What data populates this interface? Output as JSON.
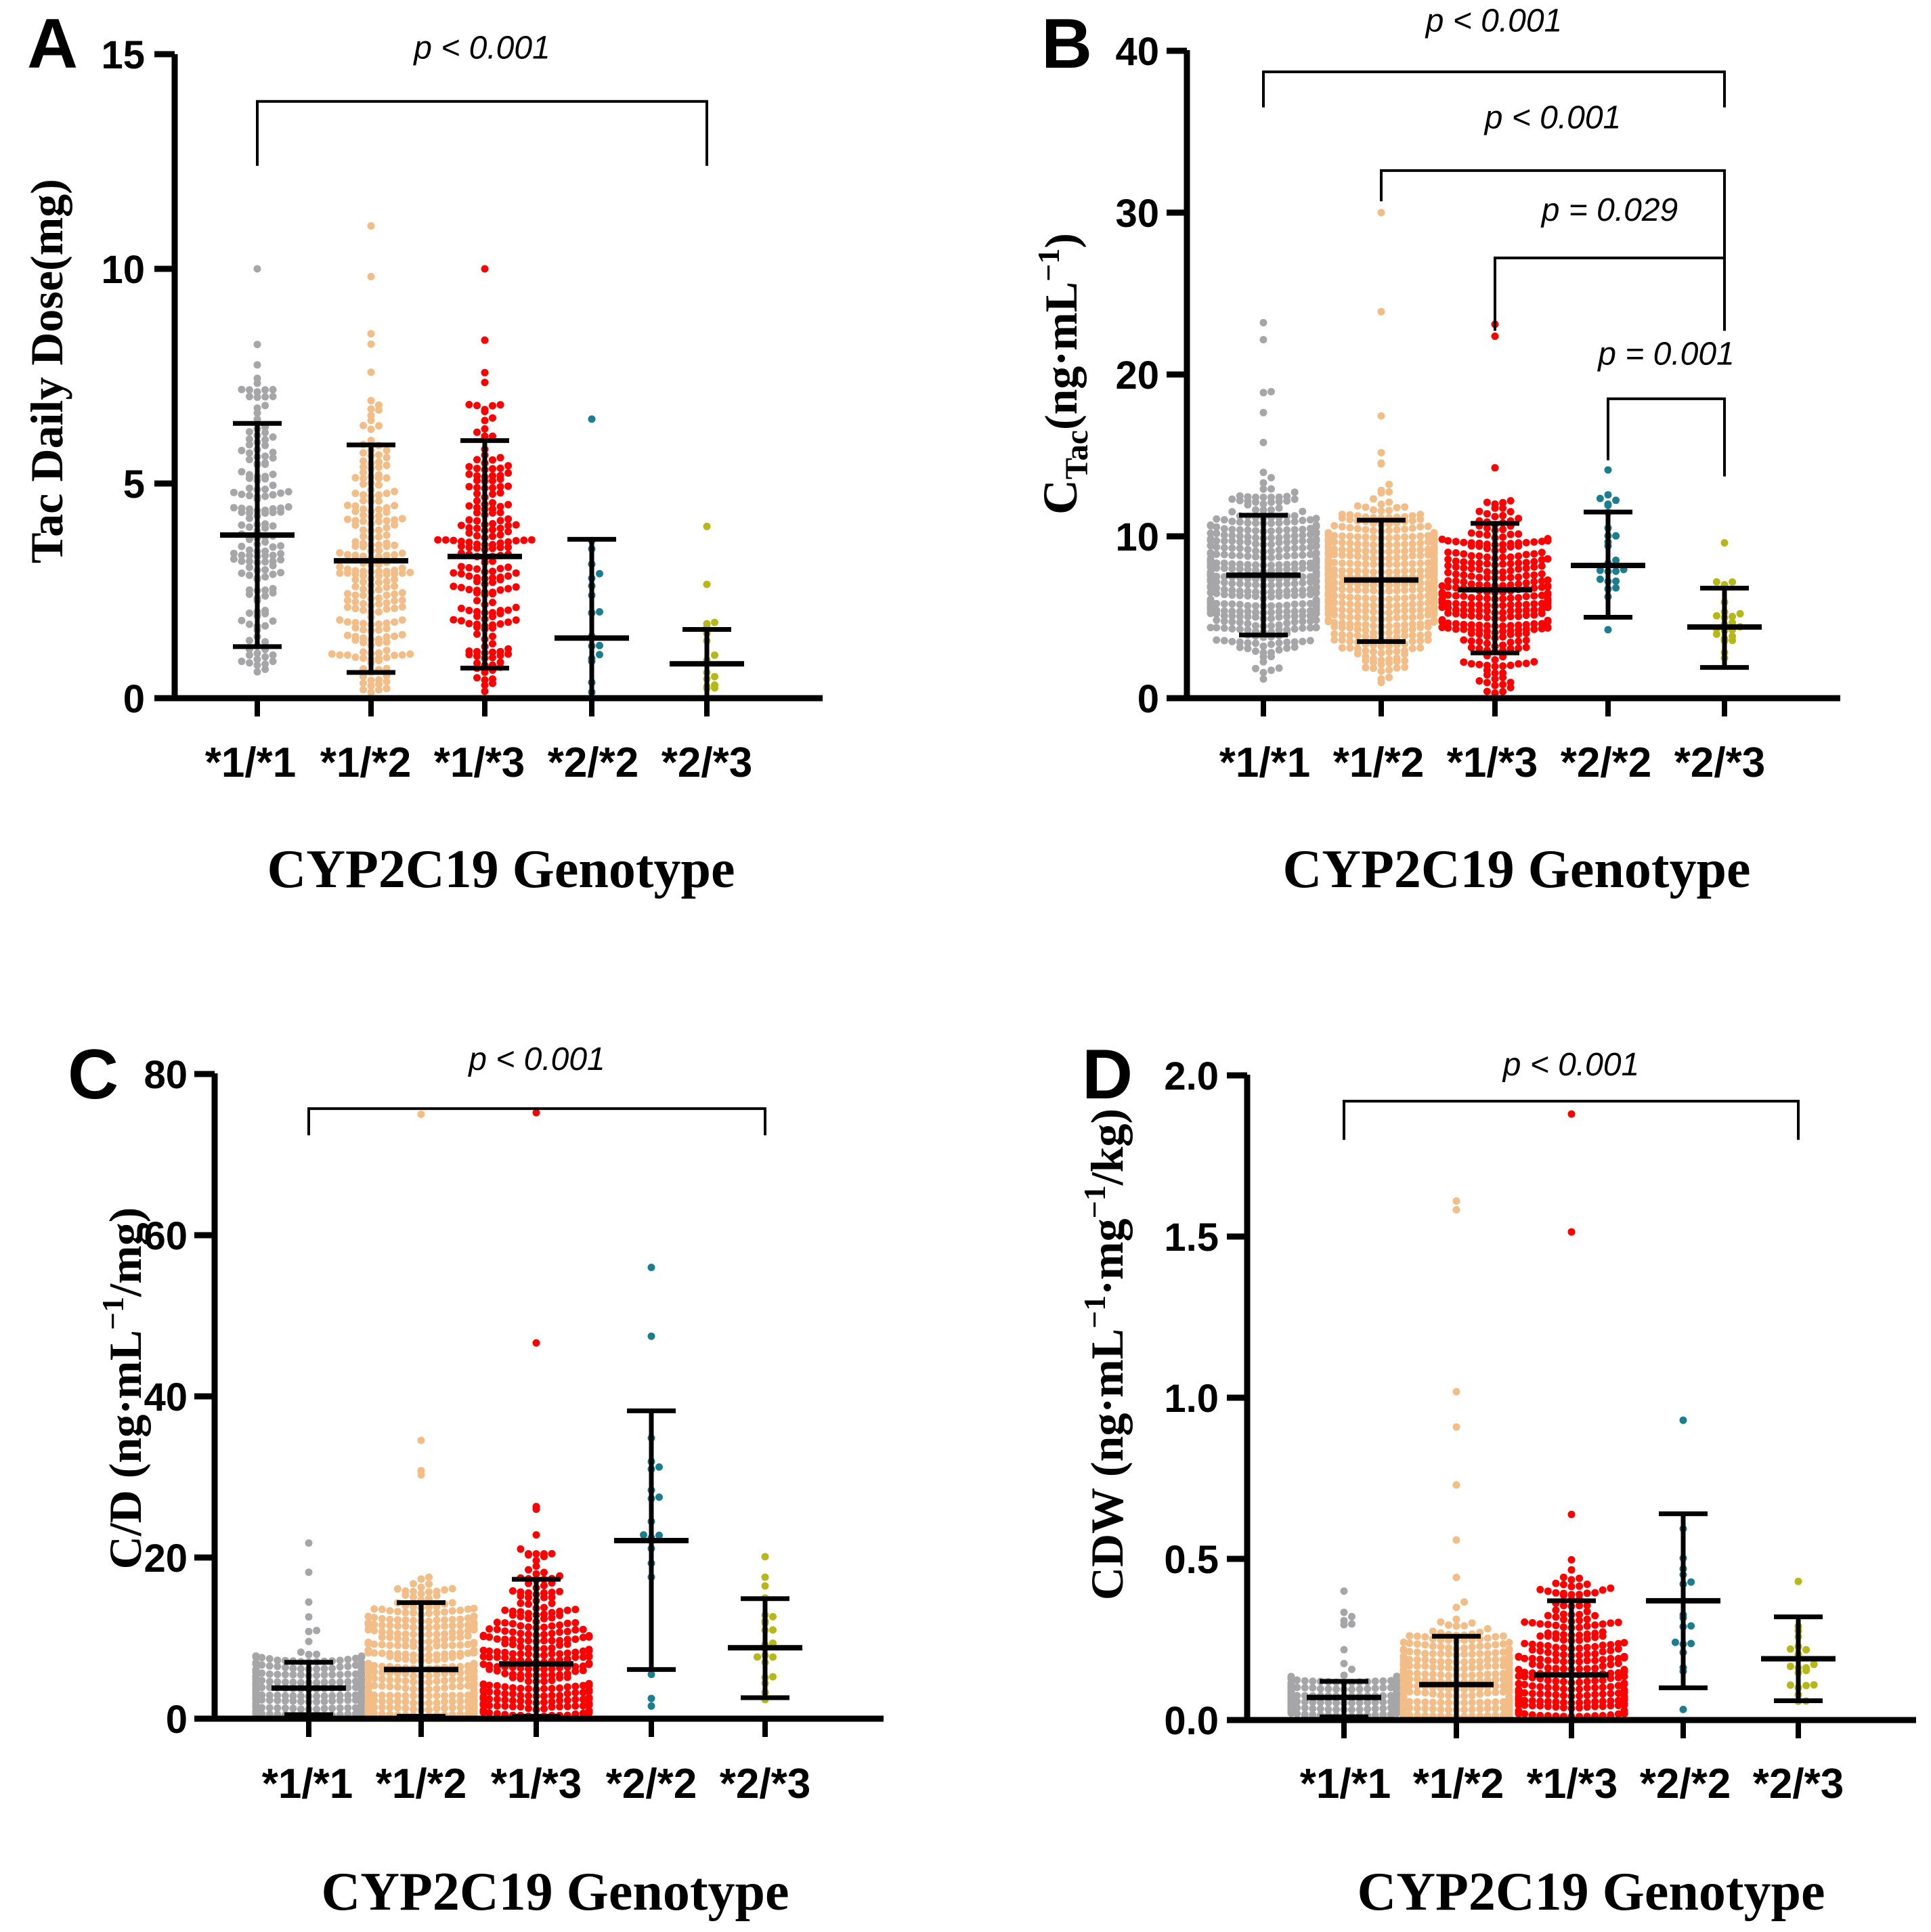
{
  "figure": {
    "genotypes": [
      "*1/*1",
      "*1/*2",
      "*1/*3",
      "*2/*2",
      "*2/*3"
    ],
    "colors": [
      "#a6a6a8",
      "#f2bd86",
      "#ff0000",
      "#1c7d91",
      "#b6b81a"
    ]
  },
  "chart_data": [
    {
      "panel": "A",
      "type": "scatter",
      "xlabel": "CYP2C19 Genotype",
      "ylabel": "Tac Daily Dose(mg)",
      "ylim": [
        0,
        15
      ],
      "yticks": [
        0,
        5,
        10,
        15
      ],
      "ytick_labels": [
        "0",
        "5",
        "10",
        "15"
      ],
      "categories": [
        "*1/*1",
        "*1/*2",
        "*1/*3",
        "*2/*2",
        "*2/*3"
      ],
      "groups": [
        {
          "name": "*1/*1",
          "mean": 3.8,
          "sd_low": 1.2,
          "sd_high": 6.4,
          "max": 10,
          "min": 0.5,
          "n": 160
        },
        {
          "name": "*1/*2",
          "mean": 3.2,
          "sd_low": 0.6,
          "sd_high": 5.9,
          "max": 11,
          "min": 0.1,
          "n": 220
        },
        {
          "name": "*1/*3",
          "mean": 3.3,
          "sd_low": 0.7,
          "sd_high": 6.0,
          "max": 10,
          "min": 0.1,
          "n": 200
        },
        {
          "name": "*2/*2",
          "mean": 1.4,
          "sd_low": 0.0,
          "sd_high": 3.7,
          "max": 6.5,
          "min": 0.1,
          "n": 18
        },
        {
          "name": "*2/*3",
          "mean": 0.8,
          "sd_low": 0.0,
          "sd_high": 1.6,
          "max": 4,
          "min": 0.2,
          "n": 16
        }
      ],
      "comparisons": [
        {
          "from": 0,
          "to": 4,
          "label": "p < 0.001",
          "y": 13.9,
          "drop_from": 12.4,
          "drop_to": 12.4,
          "text_y": 14.9
        }
      ]
    },
    {
      "panel": "B",
      "type": "scatter",
      "xlabel": "CYP2C19 Genotype",
      "ylabel_main": "C",
      "ylabel_sub": "Tac",
      "ylabel_rest": "(ng·mL",
      "ylabel_sup": "−1",
      "ylabel_end": ")",
      "ylim": [
        0,
        40
      ],
      "yticks": [
        0,
        10,
        20,
        30,
        40
      ],
      "ytick_labels": [
        "0",
        "10",
        "20",
        "30",
        "40"
      ],
      "categories": [
        "*1/*1",
        "*1/*2",
        "*1/*3",
        "*2/*2",
        "*2/*3"
      ],
      "groups": [
        {
          "name": "*1/*1",
          "mean": 7.6,
          "sd_low": 3.9,
          "sd_high": 11.3,
          "max": 23.2,
          "min": 0.8,
          "n": 420
        },
        {
          "name": "*1/*2",
          "mean": 7.3,
          "sd_low": 3.5,
          "sd_high": 11.0,
          "max": 30,
          "min": 0.3,
          "n": 500
        },
        {
          "name": "*1/*3",
          "mean": 6.7,
          "sd_low": 2.8,
          "sd_high": 10.8,
          "max": 23.1,
          "min": 0.3,
          "n": 300
        },
        {
          "name": "*2/*2",
          "mean": 8.2,
          "sd_low": 5.0,
          "sd_high": 11.5,
          "max": 14.1,
          "min": 2.9,
          "n": 24
        },
        {
          "name": "*2/*3",
          "mean": 4.4,
          "sd_low": 1.9,
          "sd_high": 6.8,
          "max": 9.6,
          "min": 1.3,
          "n": 22
        }
      ],
      "comparisons": [
        {
          "from": 0,
          "to": 4,
          "label": "p < 0.001",
          "y": 38.7,
          "drop_from": 36.5,
          "drop_to": 36.5,
          "text_y": 41.2
        },
        {
          "from": 1,
          "to": 4,
          "label": "p < 0.001",
          "y": 32.6,
          "drop_from": 30.7,
          "drop_to": 25.0,
          "text_y": 35.2
        },
        {
          "from": 2,
          "to": 4,
          "label": "p = 0.029",
          "y": 27.2,
          "drop_from": 22.7,
          "drop_to": 22.7,
          "text_y": 29.5
        },
        {
          "from": 3,
          "to": 4,
          "label": "p = 0.001",
          "y": 18.5,
          "drop_from": 14.7,
          "drop_to": 13.7,
          "text_y": 20.6
        }
      ]
    },
    {
      "panel": "C",
      "type": "scatter",
      "xlabel": "CYP2C19 Genotype",
      "ylabel_main": "C/D (ng·mL",
      "ylabel_sup": "−1",
      "ylabel_end": "/mg)",
      "ylim": [
        0,
        80
      ],
      "yticks": [
        0,
        20,
        40,
        60,
        80
      ],
      "ytick_labels": [
        "0",
        "20",
        "40",
        "60",
        "80"
      ],
      "categories": [
        "*1/*1",
        "*1/*2",
        "*1/*3",
        "*2/*2",
        "*2/*3"
      ],
      "groups": [
        {
          "name": "*1/*1",
          "mean": 3.8,
          "sd_low": 0.5,
          "sd_high": 7.0,
          "max": 21.8,
          "min": 0.2,
          "n": 300
        },
        {
          "name": "*1/*2",
          "mean": 6.1,
          "sd_low": 0.3,
          "sd_high": 14.4,
          "max": 75,
          "min": 0.1,
          "n": 380
        },
        {
          "name": "*1/*3",
          "mean": 6.8,
          "sd_low": 0.3,
          "sd_high": 17.3,
          "max": 75.2,
          "min": 0.1,
          "n": 300
        },
        {
          "name": "*2/*2",
          "mean": 22.1,
          "sd_low": 6.1,
          "sd_high": 38.2,
          "max": 56,
          "min": 1.2,
          "n": 18
        },
        {
          "name": "*2/*3",
          "mean": 8.8,
          "sd_low": 2.6,
          "sd_high": 14.9,
          "max": 20.1,
          "min": 2.1,
          "n": 20
        }
      ],
      "comparisons": [
        {
          "from": 0,
          "to": 4,
          "label": "p < 0.001",
          "y": 75.7,
          "drop_from": 72.4,
          "drop_to": 72.4,
          "text_y": 80.5
        }
      ]
    },
    {
      "panel": "D",
      "type": "scatter",
      "xlabel": "CYP2C19 Genotype",
      "ylabel_main": "CDW (ng·mL",
      "ylabel_sup": "−1",
      "ylabel_mid": "·mg",
      "ylabel_sup2": "−1",
      "ylabel_end": "/kg)",
      "ylim": [
        0,
        2.0
      ],
      "yticks": [
        0,
        0.5,
        1.0,
        1.5,
        2.0
      ],
      "ytick_labels": [
        "0.0",
        "0.5",
        "1.0",
        "1.5",
        "2.0"
      ],
      "categories": [
        "*1/*1",
        "*1/*2",
        "*1/*3",
        "*2/*2",
        "*2/*3"
      ],
      "groups": [
        {
          "name": "*1/*1",
          "mean": 0.07,
          "sd_low": 0.01,
          "sd_high": 0.12,
          "max": 0.4,
          "min": 0.0,
          "n": 320
        },
        {
          "name": "*1/*2",
          "mean": 0.11,
          "sd_low": 0.0,
          "sd_high": 0.26,
          "max": 1.61,
          "min": 0.0,
          "n": 380
        },
        {
          "name": "*1/*3",
          "mean": 0.14,
          "sd_low": 0.0,
          "sd_high": 0.37,
          "max": 1.88,
          "min": 0.0,
          "n": 300
        },
        {
          "name": "*2/*2",
          "mean": 0.37,
          "sd_low": 0.1,
          "sd_high": 0.64,
          "max": 0.93,
          "min": 0.02,
          "n": 18
        },
        {
          "name": "*2/*3",
          "mean": 0.19,
          "sd_low": 0.06,
          "sd_high": 0.32,
          "max": 0.43,
          "min": 0.03,
          "n": 20
        }
      ],
      "comparisons": [
        {
          "from": 0,
          "to": 4,
          "label": "p < 0.001",
          "y": 1.92,
          "drop_from": 1.8,
          "drop_to": 1.8,
          "text_y": 2.0
        }
      ]
    }
  ]
}
